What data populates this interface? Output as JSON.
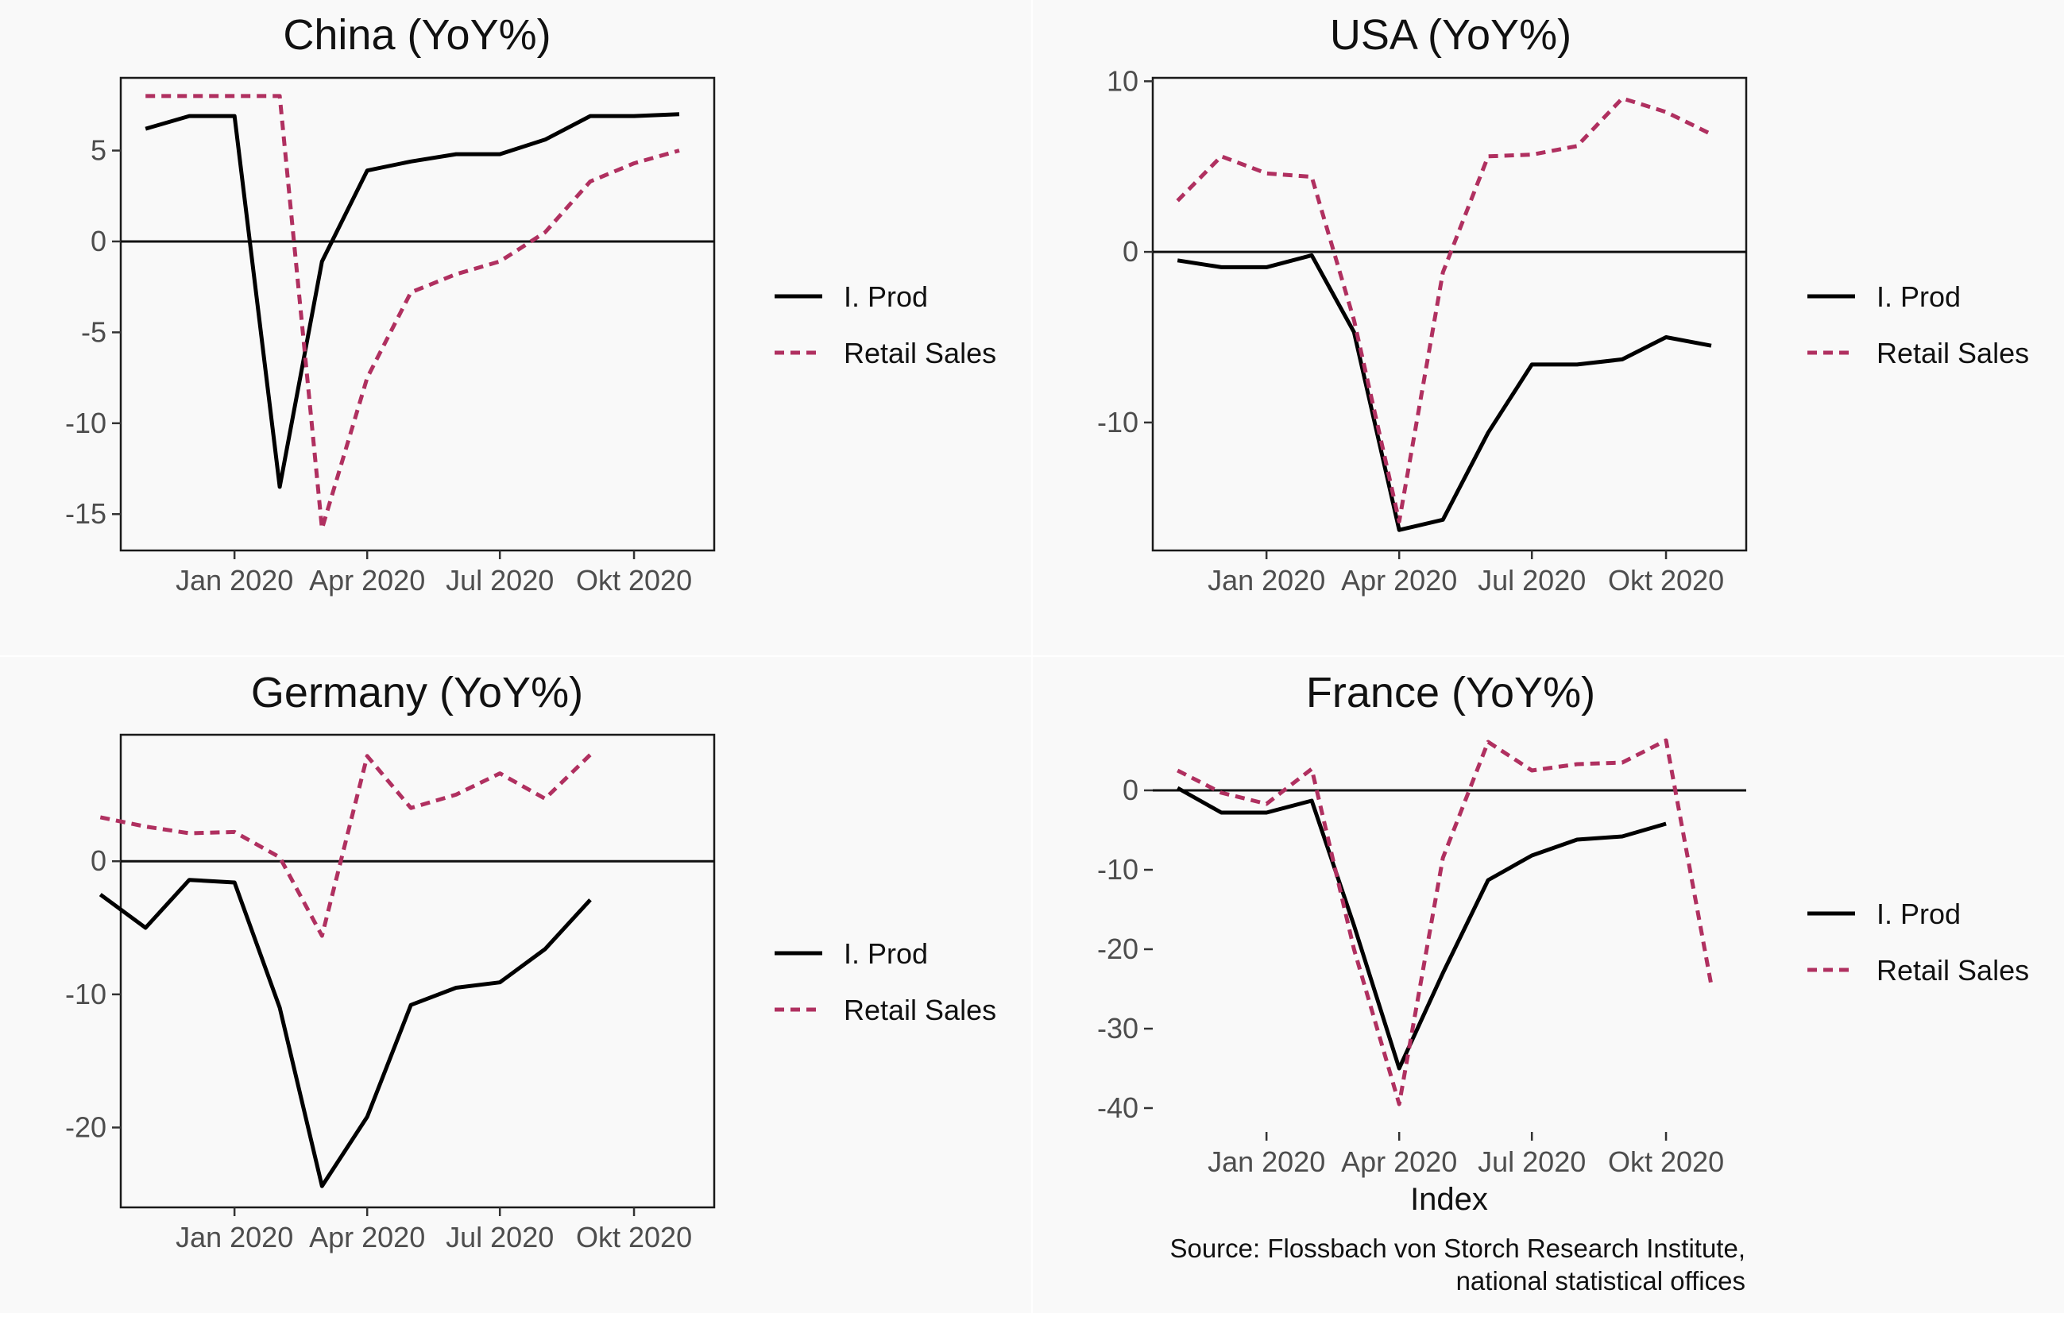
{
  "source": {
    "line1": "Source: Flossbach von Storch Research Institute,",
    "line2": "national statistical offices"
  },
  "chart_data": [
    {
      "type": "line",
      "title": "China (YoY%)",
      "xlabel": "",
      "ylabel": "",
      "x": [
        "2019-11",
        "2019-12",
        "2020-01",
        "2020-02",
        "2020-03",
        "2020-04",
        "2020-05",
        "2020-06",
        "2020-07",
        "2020-08",
        "2020-09",
        "2020-10",
        "2020-11"
      ],
      "xlim": [
        "2019-10-15",
        "2020-11-25"
      ],
      "xticks": [
        {
          "date": "2020-01-01",
          "label": "Jan 2020"
        },
        {
          "date": "2020-04-01",
          "label": "Apr 2020"
        },
        {
          "date": "2020-07-01",
          "label": "Jul 2020"
        },
        {
          "date": "2020-10-01",
          "label": "Okt 2020"
        }
      ],
      "ylim": [
        -17,
        9
      ],
      "yticks": [
        {
          "v": 5,
          "label": "5"
        },
        {
          "v": 0,
          "label": "0"
        },
        {
          "v": -5,
          "label": "-5"
        },
        {
          "v": -10,
          "label": "-10"
        },
        {
          "v": -15,
          "label": "-15"
        }
      ],
      "series": [
        {
          "name": "I. Prod",
          "color": "#000000",
          "dash": "solid",
          "points": [
            [
              "2019-11-01",
              6.2
            ],
            [
              "2019-12-01",
              6.9
            ],
            [
              "2020-01-01",
              6.9
            ],
            [
              "2020-02-01",
              -13.5
            ],
            [
              "2020-03-01",
              -1.1
            ],
            [
              "2020-04-01",
              3.9
            ],
            [
              "2020-05-01",
              4.4
            ],
            [
              "2020-06-01",
              4.8
            ],
            [
              "2020-07-01",
              4.8
            ],
            [
              "2020-08-01",
              5.6
            ],
            [
              "2020-09-01",
              6.9
            ],
            [
              "2020-10-01",
              6.9
            ],
            [
              "2020-11-01",
              7.0
            ]
          ]
        },
        {
          "name": "Retail Sales",
          "color": "#b03060",
          "dash": "dashed",
          "points": [
            [
              "2019-11-01",
              8.0
            ],
            [
              "2019-12-01",
              8.0
            ],
            [
              "2020-01-01",
              8.0
            ],
            [
              "2020-02-01",
              8.0
            ],
            [
              "2020-03-01",
              -15.8
            ],
            [
              "2020-04-01",
              -7.5
            ],
            [
              "2020-05-01",
              -2.8
            ],
            [
              "2020-06-01",
              -1.8
            ],
            [
              "2020-07-01",
              -1.1
            ],
            [
              "2020-08-01",
              0.5
            ],
            [
              "2020-09-01",
              3.3
            ],
            [
              "2020-10-01",
              4.3
            ],
            [
              "2020-11-01",
              5.0
            ]
          ]
        }
      ],
      "legend": [
        "I. Prod",
        "Retail Sales"
      ]
    },
    {
      "type": "line",
      "title": "USA (YoY%)",
      "xlabel": "",
      "ylabel": "",
      "x": [
        "2019-11",
        "2019-12",
        "2020-01",
        "2020-02",
        "2020-03",
        "2020-04",
        "2020-05",
        "2020-06",
        "2020-07",
        "2020-08",
        "2020-09",
        "2020-10",
        "2020-11"
      ],
      "xlim": [
        "2019-10-15",
        "2020-11-25"
      ],
      "xticks": [
        {
          "date": "2020-01-01",
          "label": "Jan 2020"
        },
        {
          "date": "2020-04-01",
          "label": "Apr 2020"
        },
        {
          "date": "2020-07-01",
          "label": "Jul 2020"
        },
        {
          "date": "2020-10-01",
          "label": "Okt 2020"
        }
      ],
      "ylim": [
        -17.5,
        10.2
      ],
      "yticks": [
        {
          "v": 10,
          "label": "10"
        },
        {
          "v": 0,
          "label": "0"
        },
        {
          "v": -10,
          "label": "-10"
        }
      ],
      "series": [
        {
          "name": "I. Prod",
          "color": "#000000",
          "dash": "solid",
          "points": [
            [
              "2019-11-01",
              -0.5
            ],
            [
              "2019-12-01",
              -0.9
            ],
            [
              "2020-01-01",
              -0.9
            ],
            [
              "2020-02-01",
              -0.2
            ],
            [
              "2020-03-01",
              -4.7
            ],
            [
              "2020-04-01",
              -16.3
            ],
            [
              "2020-05-01",
              -15.7
            ],
            [
              "2020-06-01",
              -10.6
            ],
            [
              "2020-07-01",
              -6.6
            ],
            [
              "2020-08-01",
              -6.6
            ],
            [
              "2020-09-01",
              -6.3
            ],
            [
              "2020-10-01",
              -5.0
            ],
            [
              "2020-11-01",
              -5.5
            ]
          ]
        },
        {
          "name": "Retail Sales",
          "color": "#b03060",
          "dash": "dashed",
          "points": [
            [
              "2019-11-01",
              3.0
            ],
            [
              "2019-12-01",
              5.6
            ],
            [
              "2020-01-01",
              4.6
            ],
            [
              "2020-02-01",
              4.4
            ],
            [
              "2020-03-01",
              -4.0
            ],
            [
              "2020-04-01",
              -15.8
            ],
            [
              "2020-05-01",
              -1.2
            ],
            [
              "2020-06-01",
              5.6
            ],
            [
              "2020-07-01",
              5.7
            ],
            [
              "2020-08-01",
              6.2
            ],
            [
              "2020-09-01",
              9.0
            ],
            [
              "2020-10-01",
              8.2
            ],
            [
              "2020-11-01",
              6.9
            ]
          ]
        }
      ],
      "legend": [
        "I. Prod",
        "Retail Sales"
      ]
    },
    {
      "type": "line",
      "title": "Germany (YoY%)",
      "xlabel": "",
      "ylabel": "",
      "x": [
        "2019-11",
        "2019-12",
        "2020-01",
        "2020-02",
        "2020-03",
        "2020-04",
        "2020-05",
        "2020-06",
        "2020-07",
        "2020-08",
        "2020-09",
        "2020-10",
        "2020-11"
      ],
      "xlim": [
        "2019-10-15",
        "2020-11-25"
      ],
      "xticks": [
        {
          "date": "2020-01-01",
          "label": "Jan 2020"
        },
        {
          "date": "2020-04-01",
          "label": "Apr 2020"
        },
        {
          "date": "2020-07-01",
          "label": "Jul 2020"
        },
        {
          "date": "2020-10-01",
          "label": "Okt 2020"
        }
      ],
      "ylim": [
        -26,
        9.5
      ],
      "yticks": [
        {
          "v": 0,
          "label": "0"
        },
        {
          "v": -10,
          "label": "-10"
        },
        {
          "v": -20,
          "label": "-20"
        }
      ],
      "series": [
        {
          "name": "I. Prod",
          "color": "#000000",
          "dash": "solid",
          "points": [
            [
              "2019-10-01",
              -2.5
            ],
            [
              "2019-11-01",
              -5.0
            ],
            [
              "2019-12-01",
              -1.4
            ],
            [
              "2020-01-01",
              -1.6
            ],
            [
              "2020-02-01",
              -11.0
            ],
            [
              "2020-03-01",
              -24.4
            ],
            [
              "2020-04-01",
              -19.2
            ],
            [
              "2020-05-01",
              -10.8
            ],
            [
              "2020-06-01",
              -9.5
            ],
            [
              "2020-07-01",
              -9.1
            ],
            [
              "2020-08-01",
              -6.6
            ],
            [
              "2020-09-01",
              -2.9
            ]
          ]
        },
        {
          "name": "Retail Sales",
          "color": "#b03060",
          "dash": "dashed",
          "points": [
            [
              "2019-10-01",
              3.3
            ],
            [
              "2019-11-01",
              2.6
            ],
            [
              "2019-12-01",
              2.1
            ],
            [
              "2020-01-01",
              2.2
            ],
            [
              "2020-02-01",
              0.3
            ],
            [
              "2020-03-01",
              -5.6
            ],
            [
              "2020-04-01",
              7.9
            ],
            [
              "2020-05-01",
              4.0
            ],
            [
              "2020-06-01",
              5.0
            ],
            [
              "2020-07-01",
              6.6
            ],
            [
              "2020-08-01",
              4.7
            ],
            [
              "2020-09-01",
              8.0
            ]
          ]
        }
      ],
      "legend": [
        "I. Prod",
        "Retail Sales"
      ]
    },
    {
      "type": "line",
      "title": "France (YoY%)",
      "xlabel": "Index",
      "ylabel": "",
      "x": [
        "2019-11",
        "2019-12",
        "2020-01",
        "2020-02",
        "2020-03",
        "2020-04",
        "2020-05",
        "2020-06",
        "2020-07",
        "2020-08",
        "2020-09",
        "2020-10",
        "2020-11"
      ],
      "xlim": [
        "2019-10-15",
        "2020-11-25"
      ],
      "xticks": [
        {
          "date": "2020-01-01",
          "label": "Jan 2020"
        },
        {
          "date": "2020-04-01",
          "label": "Apr 2020"
        },
        {
          "date": "2020-07-01",
          "label": "Jul 2020"
        },
        {
          "date": "2020-10-01",
          "label": "Okt 2020"
        }
      ],
      "ylim": [
        -43,
        7
      ],
      "yticks": [
        {
          "v": 0,
          "label": "0"
        },
        {
          "v": -10,
          "label": "-10"
        },
        {
          "v": -20,
          "label": "-20"
        },
        {
          "v": -30,
          "label": "-30"
        },
        {
          "v": -40,
          "label": "-40"
        }
      ],
      "series": [
        {
          "name": "I. Prod",
          "color": "#000000",
          "dash": "solid",
          "points": [
            [
              "2019-11-01",
              0.3
            ],
            [
              "2019-12-01",
              -2.8
            ],
            [
              "2020-01-01",
              -2.8
            ],
            [
              "2020-02-01",
              -1.3
            ],
            [
              "2020-03-01",
              -17.0
            ],
            [
              "2020-04-01",
              -35.0
            ],
            [
              "2020-05-01",
              -23.0
            ],
            [
              "2020-06-01",
              -11.3
            ],
            [
              "2020-07-01",
              -8.2
            ],
            [
              "2020-08-01",
              -6.2
            ],
            [
              "2020-09-01",
              -5.8
            ],
            [
              "2020-10-01",
              -4.2
            ]
          ]
        },
        {
          "name": "Retail Sales",
          "color": "#b03060",
          "dash": "dashed",
          "points": [
            [
              "2019-11-01",
              2.5
            ],
            [
              "2019-12-01",
              -0.3
            ],
            [
              "2020-01-01",
              -1.7
            ],
            [
              "2020-02-01",
              2.7
            ],
            [
              "2020-03-01",
              -20.0
            ],
            [
              "2020-04-01",
              -39.5
            ],
            [
              "2020-05-01",
              -8.5
            ],
            [
              "2020-06-01",
              6.1
            ],
            [
              "2020-07-01",
              2.5
            ],
            [
              "2020-08-01",
              3.3
            ],
            [
              "2020-09-01",
              3.5
            ],
            [
              "2020-10-01",
              6.3
            ],
            [
              "2020-11-01",
              -24.5
            ]
          ]
        }
      ],
      "legend": [
        "I. Prod",
        "Retail Sales"
      ]
    }
  ]
}
